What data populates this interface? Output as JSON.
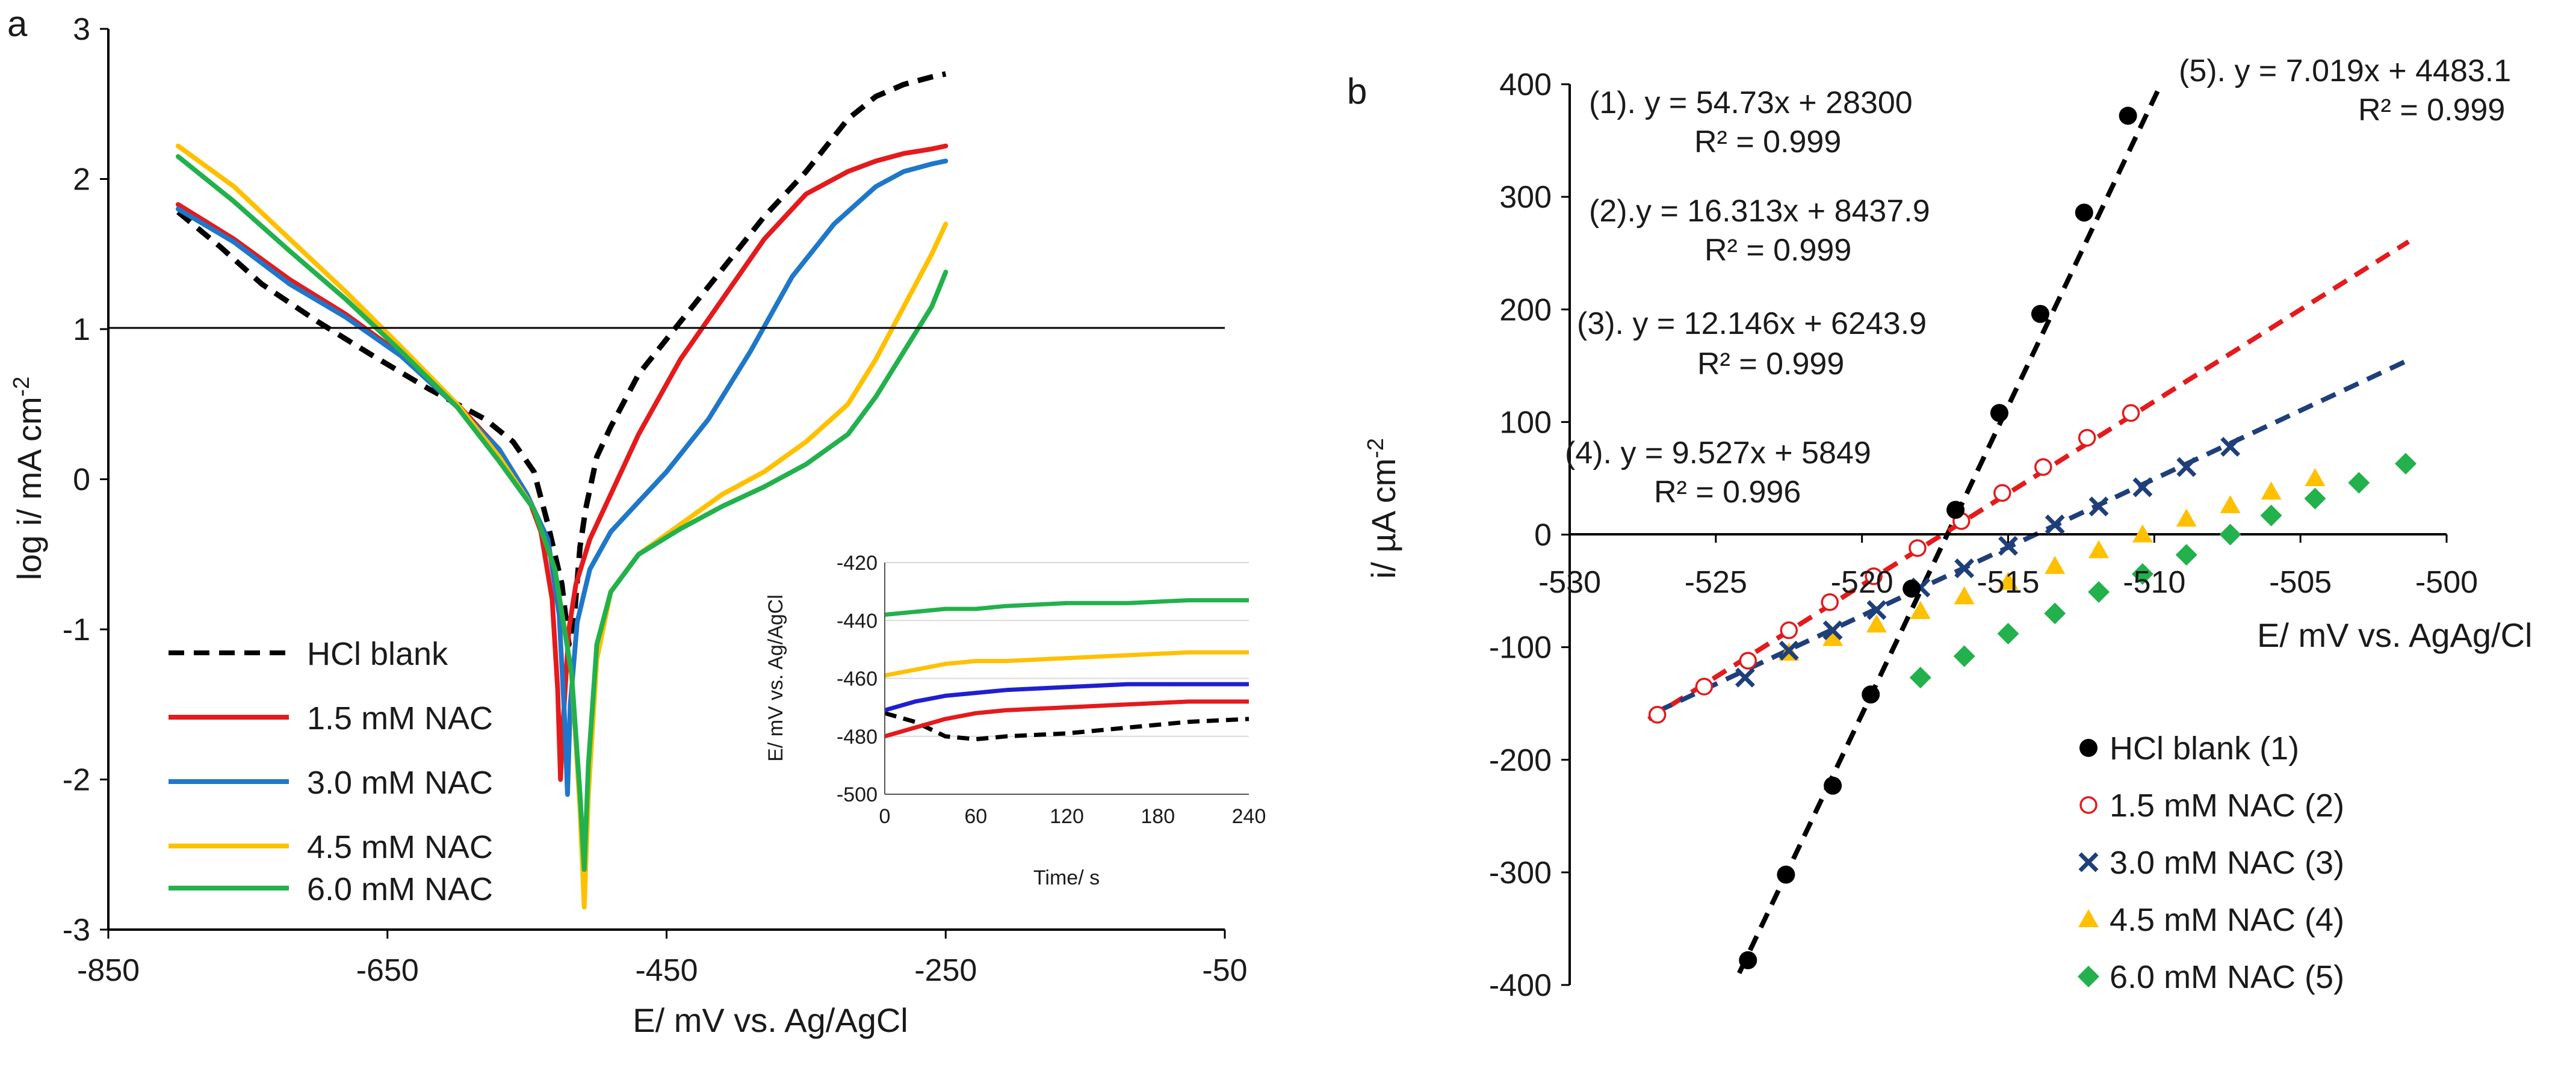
{
  "chart_data": [
    {
      "panel": "a",
      "type": "line",
      "xlabel": "E/ mV vs. Ag/AgCl",
      "ylabel": "log i/ mA cm",
      "ylabel_sup": "-2",
      "xlim": [
        -850,
        -50
      ],
      "ylim": [
        -3,
        3
      ],
      "xticks": [
        "-850",
        "-650",
        "-450",
        "-250",
        "-50"
      ],
      "yticks": [
        "-3",
        "-2",
        "-1",
        "0",
        "1",
        "2",
        "3"
      ],
      "series": [
        {
          "name": "HCl blank",
          "color": "#000000",
          "dash": "dashed",
          "x": [
            -800,
            -770,
            -740,
            -700,
            -660,
            -620,
            -580,
            -560,
            -545,
            -535,
            -525,
            -520,
            -516,
            -512,
            -508,
            -500,
            -490,
            -470,
            -440,
            -410,
            -380,
            -350,
            -320,
            -300,
            -280,
            -260,
            -250
          ],
          "y": [
            1.78,
            1.55,
            1.3,
            1.05,
            0.82,
            0.6,
            0.4,
            0.25,
            0.05,
            -0.3,
            -0.7,
            -1.1,
            -0.9,
            -0.45,
            -0.2,
            0.15,
            0.35,
            0.7,
            1.05,
            1.4,
            1.75,
            2.05,
            2.4,
            2.55,
            2.63,
            2.68,
            2.7
          ]
        },
        {
          "name": "1.5 mM NAC",
          "color": "#e41a1c",
          "dash": "solid",
          "x": [
            -800,
            -760,
            -720,
            -680,
            -640,
            -600,
            -570,
            -550,
            -540,
            -532,
            -528,
            -526,
            -524,
            -520,
            -515,
            -505,
            -490,
            -470,
            -440,
            -410,
            -380,
            -350,
            -320,
            -300,
            -280,
            -260,
            -250
          ],
          "y": [
            1.83,
            1.6,
            1.33,
            1.1,
            0.83,
            0.5,
            0.2,
            -0.1,
            -0.35,
            -0.8,
            -1.4,
            -2.0,
            -1.6,
            -1.0,
            -0.7,
            -0.4,
            -0.1,
            0.3,
            0.8,
            1.2,
            1.6,
            1.9,
            2.05,
            2.12,
            2.17,
            2.2,
            2.22
          ]
        },
        {
          "name": "3.0 mM NAC",
          "color": "#1f77c9",
          "dash": "solid",
          "x": [
            -800,
            -760,
            -720,
            -680,
            -640,
            -600,
            -570,
            -550,
            -535,
            -527,
            -523,
            -521,
            -519,
            -514,
            -505,
            -490,
            -470,
            -450,
            -420,
            -390,
            -360,
            -330,
            -300,
            -280,
            -260,
            -250
          ],
          "y": [
            1.8,
            1.58,
            1.3,
            1.08,
            0.82,
            0.48,
            0.2,
            -0.1,
            -0.4,
            -0.9,
            -1.6,
            -2.1,
            -1.5,
            -0.95,
            -0.6,
            -0.35,
            -0.15,
            0.05,
            0.4,
            0.85,
            1.35,
            1.7,
            1.95,
            2.05,
            2.1,
            2.12
          ]
        },
        {
          "name": "4.5 mM NAC",
          "color": "#ffc000",
          "dash": "solid",
          "x": [
            -800,
            -760,
            -720,
            -680,
            -640,
            -600,
            -570,
            -545,
            -530,
            -518,
            -512,
            -509,
            -506,
            -500,
            -490,
            -470,
            -440,
            -410,
            -380,
            -350,
            -320,
            -300,
            -280,
            -260,
            -250
          ],
          "y": [
            2.22,
            1.95,
            1.6,
            1.25,
            0.88,
            0.5,
            0.15,
            -0.2,
            -0.6,
            -1.3,
            -2.2,
            -2.85,
            -2.1,
            -1.2,
            -0.75,
            -0.5,
            -0.3,
            -0.1,
            0.05,
            0.25,
            0.5,
            0.8,
            1.15,
            1.5,
            1.7
          ]
        },
        {
          "name": "6.0 mM NAC",
          "color": "#22b14c",
          "dash": "solid",
          "x": [
            -800,
            -760,
            -720,
            -680,
            -640,
            -600,
            -570,
            -545,
            -530,
            -518,
            -512,
            -509,
            -506,
            -500,
            -490,
            -470,
            -440,
            -410,
            -380,
            -350,
            -320,
            -300,
            -280,
            -260,
            -250
          ],
          "y": [
            2.15,
            1.85,
            1.52,
            1.2,
            0.85,
            0.48,
            0.12,
            -0.2,
            -0.6,
            -1.3,
            -2.1,
            -2.6,
            -1.9,
            -1.1,
            -0.75,
            -0.5,
            -0.33,
            -0.18,
            -0.05,
            0.1,
            0.3,
            0.55,
            0.85,
            1.15,
            1.38
          ]
        }
      ],
      "legend": [
        {
          "label": "HCl blank",
          "color": "#000000",
          "dash": "dashed"
        },
        {
          "label": "1.5 mM NAC",
          "color": "#e41a1c",
          "dash": "solid"
        },
        {
          "label": "3.0 mM NAC",
          "color": "#1f77c9",
          "dash": "solid"
        },
        {
          "label": "4.5 mM NAC",
          "color": "#ffc000",
          "dash": "solid"
        },
        {
          "label": "6.0 mM NAC",
          "color": "#22b14c",
          "dash": "solid"
        }
      ],
      "inset": {
        "type": "line",
        "xlabel": "Time/ s",
        "ylabel": "E/ mV vs. Ag/AgCl",
        "xlim": [
          0,
          240
        ],
        "ylim": [
          -500,
          -420
        ],
        "xticks": [
          "0",
          "60",
          "120",
          "180",
          "240"
        ],
        "yticks": [
          "-420",
          "-440",
          "-460",
          "-480",
          "-500"
        ],
        "series": [
          {
            "name": "HCl blank",
            "color": "#000000",
            "dash": "dashed",
            "x": [
              0,
              20,
              40,
              60,
              80,
              120,
              160,
              200,
              240
            ],
            "y": [
              -472,
              -475,
              -480,
              -481,
              -480,
              -479,
              -477,
              -475,
              -474
            ]
          },
          {
            "name": "1.5 mM NAC",
            "color": "#e41a1c",
            "dash": "solid",
            "x": [
              0,
              20,
              40,
              60,
              80,
              120,
              160,
              200,
              240
            ],
            "y": [
              -480,
              -477,
              -474,
              -472,
              -471,
              -470,
              -469,
              -468,
              -468
            ]
          },
          {
            "name": "3.0 mM NAC",
            "color": "#1f1fd0",
            "dash": "solid",
            "x": [
              0,
              20,
              40,
              60,
              80,
              120,
              160,
              200,
              240
            ],
            "y": [
              -471,
              -468,
              -466,
              -465,
              -464,
              -463,
              -462,
              -462,
              -462
            ]
          },
          {
            "name": "4.5 mM NAC",
            "color": "#ffc000",
            "dash": "solid",
            "x": [
              0,
              20,
              40,
              60,
              80,
              120,
              160,
              200,
              240
            ],
            "y": [
              -459,
              -457,
              -455,
              -454,
              -454,
              -453,
              -452,
              -451,
              -451
            ]
          },
          {
            "name": "6.0 mM NAC",
            "color": "#22b14c",
            "dash": "solid",
            "x": [
              0,
              20,
              40,
              60,
              80,
              120,
              160,
              200,
              240
            ],
            "y": [
              -438,
              -437,
              -436,
              -436,
              -435,
              -434,
              -434,
              -433,
              -433
            ]
          }
        ]
      }
    },
    {
      "panel": "b",
      "type": "scatter",
      "xlabel": "E/ mV vs. AgAg/Cl",
      "ylabel": "i/ µA cm",
      "ylabel_sup": "-2",
      "xlim": [
        -530,
        -500
      ],
      "ylim": [
        -400,
        400
      ],
      "xticks": [
        "-530",
        "-525",
        "-520",
        "-515",
        "-510",
        "-505",
        "-500"
      ],
      "yticks": [
        "400",
        "300",
        "200",
        "100",
        "0",
        "-100",
        "-200",
        "-300",
        "-400"
      ],
      "series": [
        {
          "name": "HCl blank (1)",
          "color": "#000000",
          "marker": "circle-filled",
          "slope": 54.73,
          "intercept": 28300,
          "fit_x": [
            -524.2,
            -509.8
          ],
          "x": [
            -523.9,
            -522.6,
            -521.0,
            -519.7,
            -518.3,
            -516.8,
            -515.3,
            -513.9,
            -512.4,
            -510.9
          ],
          "y": [
            -378,
            -302,
            -223,
            -142,
            -48,
            22,
            108,
            196,
            286,
            372
          ]
        },
        {
          "name": "1.5 mM NAC (2)",
          "color": "#e41a1c",
          "marker": "circle-open",
          "slope": 16.313,
          "intercept": 8437.9,
          "fit_x": [
            -527.3,
            -501.3
          ],
          "x": [
            -527.0,
            -525.4,
            -523.9,
            -522.5,
            -521.1,
            -519.6,
            -518.1,
            -516.6,
            -515.2,
            -513.8,
            -512.3,
            -510.8
          ],
          "y": [
            -160,
            -135,
            -112,
            -85,
            -60,
            -37,
            -12,
            12,
            37,
            60,
            86,
            108
          ]
        },
        {
          "name": "3.0 mM NAC (3)",
          "color": "#1f3f7a",
          "marker": "x",
          "slope": 12.146,
          "intercept": 6243.9,
          "fit_x": [
            -527.0,
            -501.3
          ],
          "x": [
            -524.0,
            -522.5,
            -521.0,
            -519.5,
            -518.0,
            -516.5,
            -515.0,
            -513.4,
            -511.9,
            -510.4,
            -508.9,
            -507.4
          ],
          "y": [
            -127,
            -103,
            -85,
            -67,
            -47,
            -30,
            -10,
            9,
            25,
            42,
            60,
            78
          ]
        },
        {
          "name": "4.5 mM NAC (4)",
          "color": "#ffc000",
          "marker": "triangle",
          "slope": 9.527,
          "intercept": 5849,
          "fit_x": [
            -527.0,
            -501.3
          ],
          "x": [
            -522.5,
            -521.0,
            -519.5,
            -518.0,
            -516.5,
            -515.0,
            -513.4,
            -511.9,
            -510.4,
            -508.9,
            -507.4,
            -506.0,
            -504.5
          ],
          "y": [
            -105,
            -92,
            -80,
            -68,
            -55,
            -42,
            -28,
            -14,
            0,
            14,
            26,
            38,
            50
          ]
        },
        {
          "name": "6.0 mM NAC (5)",
          "color": "#22b14c",
          "marker": "diamond",
          "slope": 7.019,
          "intercept": 4483.1,
          "fit_x": [
            -527.0,
            -501.3
          ],
          "x": [
            -518.0,
            -516.5,
            -515.0,
            -513.4,
            -511.9,
            -510.4,
            -508.9,
            -507.4,
            -506.0,
            -504.5,
            -503.0,
            -501.4
          ],
          "y": [
            -127,
            -108,
            -88,
            -70,
            -51,
            -35,
            -18,
            0,
            17,
            32,
            46,
            63
          ]
        }
      ],
      "legend": [
        {
          "label": "HCl blank (1)",
          "color": "#000000",
          "marker": "circle-filled"
        },
        {
          "label": "1.5 mM NAC (2)",
          "color": "#e41a1c",
          "marker": "circle-open"
        },
        {
          "label": "3.0 mM NAC (3)",
          "color": "#1f3f7a",
          "marker": "x"
        },
        {
          "label": "4.5 mM NAC (4)",
          "color": "#ffc000",
          "marker": "triangle"
        },
        {
          "label": "6.0 mM NAC (5)",
          "color": "#22b14c",
          "marker": "diamond"
        }
      ],
      "annotations": [
        {
          "line1": "(1). y = 54.73x  + 28300",
          "line2": "R² = 0.999"
        },
        {
          "line1": "(2).y = 16.313x  + 8437.9",
          "line2": "R² = 0.999"
        },
        {
          "line1": "(3). y = 12.146x  + 6243.9",
          "line2": "R² = 0.999"
        },
        {
          "line1": "(4). y = 9.527x  + 5849",
          "line2": "R² = 0.996"
        },
        {
          "line1": "(5). y = 7.019x  + 4483.1",
          "line2": "R² = 0.999"
        }
      ]
    }
  ]
}
